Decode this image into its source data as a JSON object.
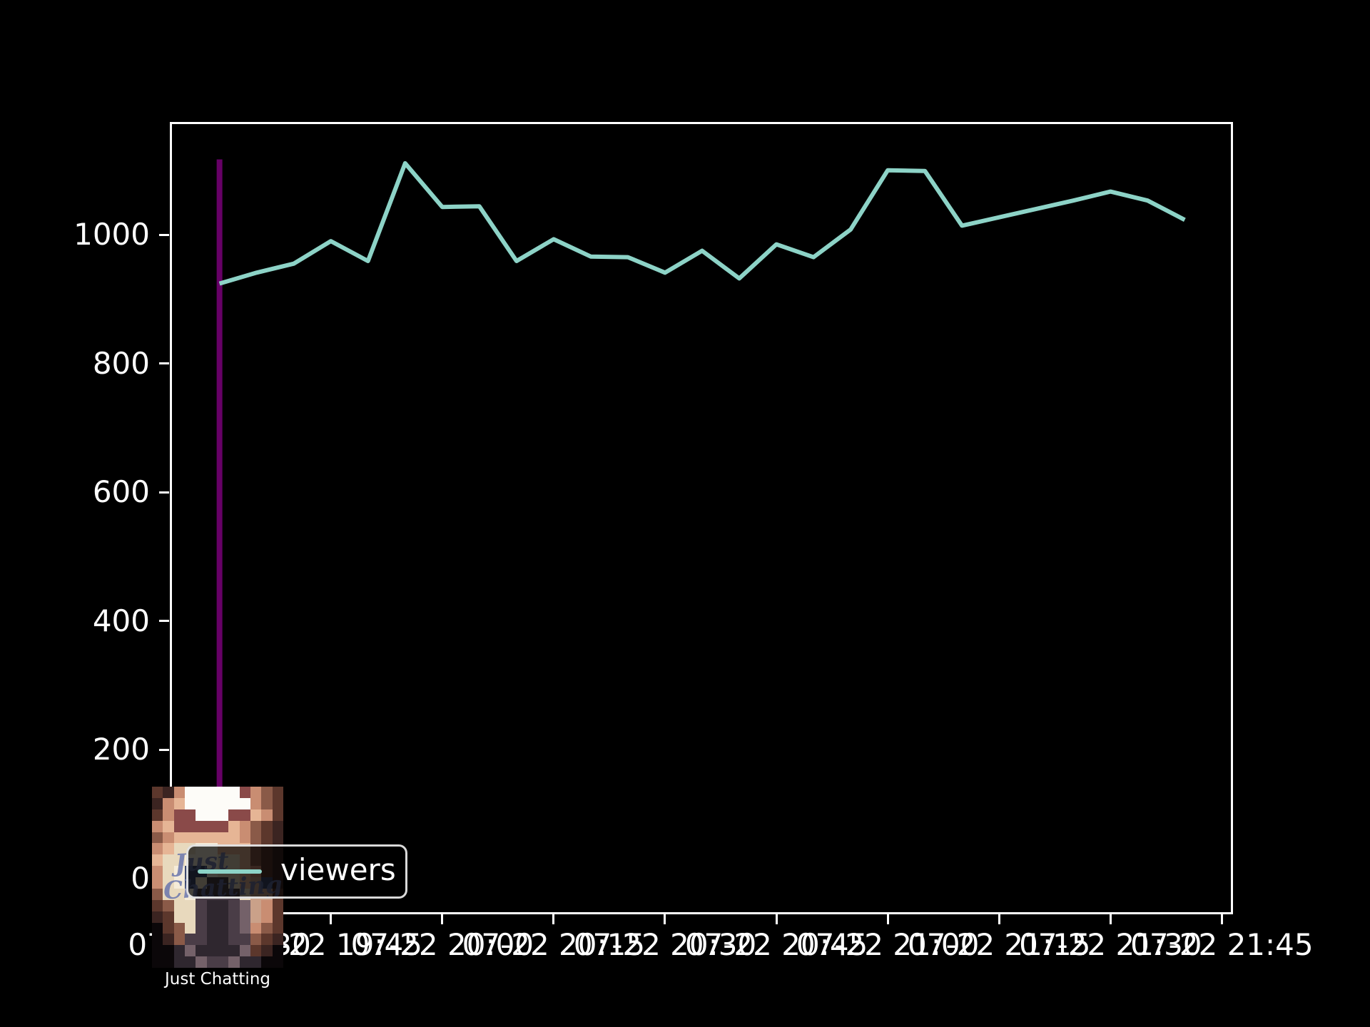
{
  "figure": {
    "background": "#000000",
    "text_color": "#ffffff",
    "caption": "Just Chatting",
    "legend": {
      "label": "viewers",
      "line_color": "#8dd3c7"
    },
    "thumbnail": {
      "name": "just-chatting-box-art",
      "mug_text_line1": "Just",
      "mug_text_line2": "Chatting",
      "palette": [
        "#0b0709",
        "#3b2421",
        "#5c372c",
        "#8a5a48",
        "#c98d72",
        "#e6b595",
        "#f3dcc6",
        "#fdfcf8",
        "#8a4a49",
        "#e8d9bd",
        "#f5ecd9",
        "#3e4a6e",
        "#4a3d47",
        "#2f272f",
        "#746169",
        "#caa189"
      ],
      "rows": [
        "214777778432",
        "145777777432",
        "248877788542",
        "458888854321",
        "345555554321",
        "4599aa555321",
        "599aaa995321",
        "49abba995421",
        "49ab9cc95fb1",
        "399acccc9ff2",
        "2399cddcef42",
        "1299cddcef42",
        "0239cddce432",
        "013ccddcc321",
        "00dedddde210",
        "00ddeccedd00"
      ]
    }
  },
  "chart_data": {
    "type": "line",
    "title": "",
    "xlabel": "",
    "ylabel": "",
    "grid": false,
    "legend_position": "lower left",
    "xlim_minutes": [
      1163.5,
      1306.5
    ],
    "ylim": [
      -55.9,
      1172.9
    ],
    "y_ticks": [
      0,
      200,
      400,
      600,
      800,
      1000
    ],
    "x_ticks": [
      {
        "minutes": 1170,
        "label": "07-22 19:30"
      },
      {
        "minutes": 1185,
        "label": "07-22 19:45"
      },
      {
        "minutes": 1200,
        "label": "07-22 20:00"
      },
      {
        "minutes": 1215,
        "label": "07-22 20:15"
      },
      {
        "minutes": 1230,
        "label": "07-22 20:30"
      },
      {
        "minutes": 1245,
        "label": "07-22 20:45"
      },
      {
        "minutes": 1260,
        "label": "07-22 21:00"
      },
      {
        "minutes": 1275,
        "label": "07-22 21:15"
      },
      {
        "minutes": 1290,
        "label": "07-22 21:30"
      },
      {
        "minutes": 1305,
        "label": "07-22 21:45"
      }
    ],
    "event_line": {
      "name": "category-start",
      "color": "rgba(128,0,128,0.8)",
      "x_minutes": 1170,
      "x_time": "19:30",
      "y_from": 0,
      "y_to": 1117
    },
    "series": [
      {
        "name": "viewers",
        "color": "#8dd3c7",
        "x_times": [
          "19:30",
          "19:35",
          "19:40",
          "19:45",
          "19:50",
          "19:55",
          "20:00",
          "20:05",
          "20:10",
          "20:15",
          "20:20",
          "20:25",
          "20:30",
          "20:35",
          "20:40",
          "20:45",
          "20:50",
          "20:55",
          "21:00",
          "21:05",
          "21:10",
          "21:15",
          "21:20",
          "21:25",
          "21:30",
          "21:35",
          "21:40"
        ],
        "x_minutes": [
          1170,
          1175,
          1180,
          1185,
          1190,
          1195,
          1200,
          1205,
          1210,
          1215,
          1220,
          1225,
          1230,
          1235,
          1240,
          1245,
          1250,
          1255,
          1260,
          1265,
          1270,
          1275,
          1280,
          1285,
          1290,
          1295,
          1300
        ],
        "values": [
          924,
          941,
          955,
          990,
          959,
          1111,
          1043,
          1044,
          959,
          993,
          966,
          965,
          941,
          975,
          932,
          985,
          965,
          1008,
          1100,
          1099,
          1014,
          1027,
          1040,
          1053,
          1067,
          1053,
          1023
        ]
      }
    ]
  }
}
